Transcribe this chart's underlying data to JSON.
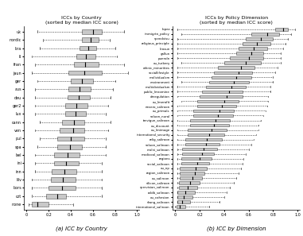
{
  "title1": "ICCs by Country",
  "subtitle1": "(sorted by median ICC score)",
  "title2": "ICCs by Policy Dimension",
  "subtitle2": "(sorted by median ICC score)",
  "caption1": "(a) ICC by Country",
  "caption2": "(b) ICC by Dimension",
  "xlim": [
    0.0,
    1.0
  ],
  "xticks": [
    0.0,
    0.2,
    0.4,
    0.6,
    0.8,
    1.0
  ],
  "country_labels_top_to_bottom": [
    "uk",
    "nordic",
    "bra",
    "it",
    "fran",
    "jaun",
    "ger",
    "aus",
    "deu",
    "ger2",
    "lux",
    "cann",
    "ven",
    "pul",
    "spa",
    "bel",
    "ini",
    "inn",
    "lilv",
    "bors",
    "czt",
    "none"
  ],
  "country_boxes_top_to_bottom": [
    [
      0.1,
      0.5,
      0.68,
      0.6,
      0.88
    ],
    [
      0.15,
      0.5,
      0.65,
      0.58,
      0.75
    ],
    [
      0.12,
      0.48,
      0.63,
      0.56,
      0.8
    ],
    [
      0.05,
      0.45,
      0.62,
      0.54,
      0.82
    ],
    [
      0.08,
      0.43,
      0.65,
      0.53,
      0.88
    ],
    [
      0.05,
      0.38,
      0.68,
      0.52,
      0.92
    ],
    [
      0.1,
      0.4,
      0.6,
      0.5,
      0.8
    ],
    [
      0.08,
      0.38,
      0.58,
      0.48,
      0.78
    ],
    [
      0.08,
      0.37,
      0.57,
      0.47,
      0.76
    ],
    [
      0.08,
      0.35,
      0.55,
      0.45,
      0.74
    ],
    [
      0.08,
      0.35,
      0.54,
      0.44,
      0.72
    ],
    [
      0.12,
      0.32,
      0.52,
      0.43,
      0.76
    ],
    [
      0.08,
      0.3,
      0.52,
      0.42,
      0.74
    ],
    [
      0.12,
      0.28,
      0.52,
      0.4,
      0.72
    ],
    [
      0.1,
      0.28,
      0.5,
      0.39,
      0.72
    ],
    [
      0.08,
      0.25,
      0.48,
      0.37,
      0.72
    ],
    [
      0.08,
      0.25,
      0.47,
      0.36,
      0.68
    ],
    [
      0.08,
      0.23,
      0.45,
      0.34,
      0.68
    ],
    [
      0.05,
      0.22,
      0.44,
      0.33,
      0.68
    ],
    [
      0.05,
      0.2,
      0.44,
      0.32,
      0.68
    ],
    [
      0.05,
      0.18,
      0.36,
      0.28,
      0.68
    ],
    [
      0.02,
      0.05,
      0.2,
      0.1,
      0.42
    ]
  ],
  "dimension_labels_top_to_bottom": [
    "lopez",
    "immigrtn_policy",
    "spendvisu",
    "religious_principle",
    "lirosun",
    "gallun",
    "punroln",
    "eu_turbery",
    "ethnic_minorities",
    "sociallifestyle",
    "molividualsm",
    "environment",
    "multidividualsm",
    "public_lmromine",
    "deregulation",
    "eu_lmerofit",
    "nevero_saliroon",
    "eu_primals",
    "soluon_nural",
    "tervigun_saliroon",
    "eu_discount",
    "eu_lmimage",
    "international_security",
    "relig_saliroon",
    "soluon_saliroon",
    "molni_saliroon",
    "modicoal_saliroon",
    "regions",
    "social_saliroon",
    "eu_np",
    "region_saliroon",
    "eu_saliroon",
    "silicon_saliroon",
    "spervisian_saliroon",
    "roldb_saliroon",
    "eu_cohesion",
    "slwng_saliroon",
    "international_saliroon"
  ],
  "dimension_boxes_top_to_bottom": [
    [
      0.02,
      0.82,
      0.92,
      0.88,
      0.98
    ],
    [
      0.05,
      0.62,
      0.85,
      0.75,
      0.95
    ],
    [
      0.02,
      0.58,
      0.8,
      0.7,
      0.92
    ],
    [
      0.02,
      0.55,
      0.78,
      0.67,
      0.9
    ],
    [
      0.02,
      0.52,
      0.75,
      0.64,
      0.88
    ],
    [
      0.02,
      0.5,
      0.72,
      0.62,
      0.86
    ],
    [
      0.02,
      0.45,
      0.72,
      0.6,
      0.86
    ],
    [
      0.05,
      0.4,
      0.7,
      0.58,
      0.86
    ],
    [
      0.02,
      0.35,
      0.65,
      0.54,
      0.84
    ],
    [
      0.02,
      0.32,
      0.63,
      0.52,
      0.82
    ],
    [
      0.02,
      0.3,
      0.62,
      0.5,
      0.8
    ],
    [
      0.05,
      0.28,
      0.6,
      0.48,
      0.8
    ],
    [
      0.02,
      0.25,
      0.58,
      0.46,
      0.78
    ],
    [
      0.02,
      0.22,
      0.55,
      0.44,
      0.78
    ],
    [
      0.02,
      0.2,
      0.55,
      0.42,
      0.76
    ],
    [
      0.05,
      0.18,
      0.52,
      0.4,
      0.76
    ],
    [
      0.02,
      0.18,
      0.5,
      0.38,
      0.75
    ],
    [
      0.02,
      0.15,
      0.48,
      0.36,
      0.74
    ],
    [
      0.02,
      0.15,
      0.47,
      0.35,
      0.72
    ],
    [
      0.02,
      0.12,
      0.45,
      0.33,
      0.7
    ],
    [
      0.02,
      0.12,
      0.44,
      0.32,
      0.68
    ],
    [
      0.02,
      0.1,
      0.42,
      0.3,
      0.68
    ],
    [
      0.02,
      0.1,
      0.4,
      0.28,
      0.66
    ],
    [
      0.02,
      0.08,
      0.38,
      0.26,
      0.64
    ],
    [
      0.02,
      0.08,
      0.36,
      0.25,
      0.62
    ],
    [
      0.02,
      0.06,
      0.34,
      0.23,
      0.6
    ],
    [
      0.02,
      0.06,
      0.32,
      0.22,
      0.58
    ],
    [
      0.02,
      0.05,
      0.3,
      0.2,
      0.56
    ],
    [
      0.02,
      0.05,
      0.28,
      0.18,
      0.55
    ],
    [
      0.02,
      0.04,
      0.26,
      0.17,
      0.54
    ],
    [
      0.02,
      0.04,
      0.24,
      0.16,
      0.52
    ],
    [
      0.02,
      0.04,
      0.22,
      0.14,
      0.5
    ],
    [
      0.02,
      0.03,
      0.2,
      0.12,
      0.48
    ],
    [
      0.02,
      0.03,
      0.18,
      0.1,
      0.45
    ],
    [
      0.02,
      0.02,
      0.16,
      0.08,
      0.42
    ],
    [
      0.02,
      0.02,
      0.14,
      0.07,
      0.4
    ],
    [
      0.02,
      0.02,
      0.12,
      0.06,
      0.36
    ],
    [
      0.0,
      0.01,
      0.08,
      0.04,
      0.28
    ]
  ],
  "box_color": "#c8c8c8",
  "median_color": "#000000",
  "whisker_color": "#000000",
  "bg_color": "#ffffff"
}
